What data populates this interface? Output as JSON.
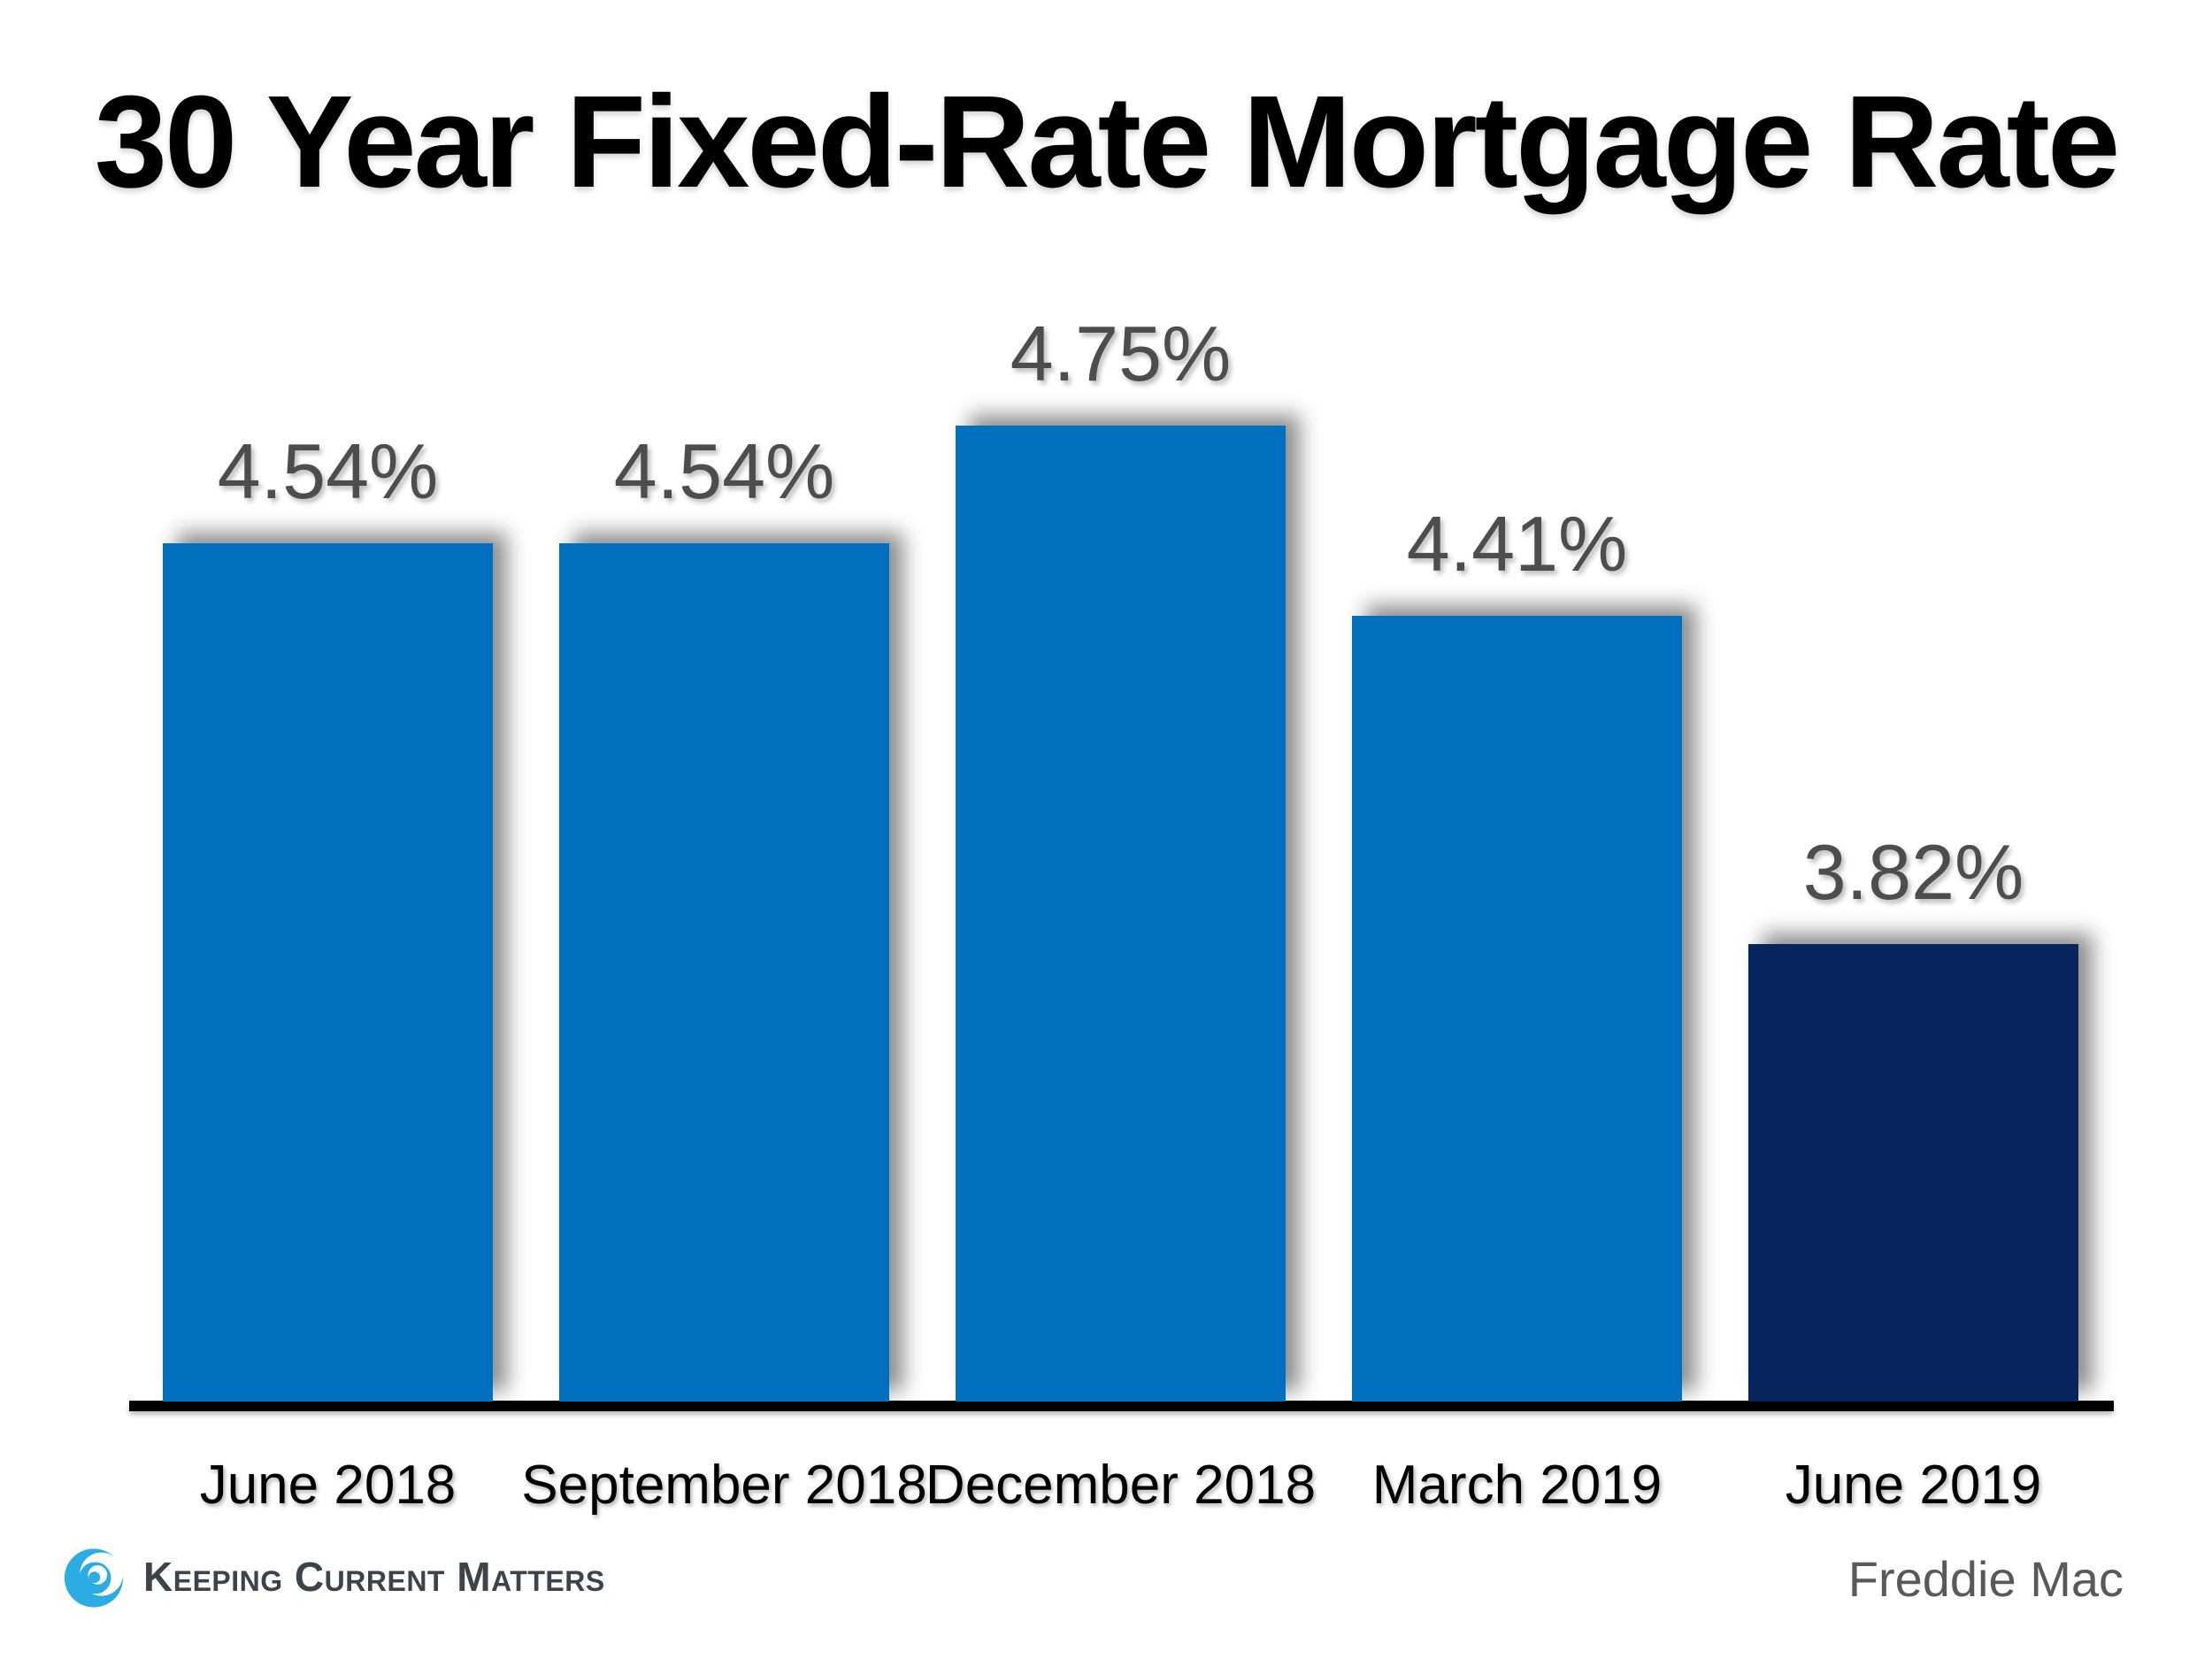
{
  "title": "30 Year Fixed-Rate Mortgage Rate",
  "footer": {
    "logo_text": "Keeping Current Matters",
    "source": "Freddie Mac"
  },
  "colors": {
    "bar_blue": "#0171BF",
    "bar_navy": "#08245C",
    "value_label": "#4D4D4D",
    "category_label": "#000000",
    "axis": "#000000",
    "logo_blue": "#2BACE2",
    "logo_text": "#3B434B",
    "source_text": "#595959"
  },
  "chart_data": {
    "type": "bar",
    "title": "30 Year Fixed-Rate Mortgage Rate",
    "categories": [
      "June 2018",
      "September 2018",
      "December 2018",
      "March 2019",
      "June 2019"
    ],
    "values": [
      4.54,
      4.54,
      4.75,
      4.41,
      3.82
    ],
    "value_labels": [
      "4.54%",
      "4.54%",
      "4.75%",
      "4.41%",
      "3.82%"
    ],
    "bar_colors": [
      "#0171BF",
      "#0171BF",
      "#0171BF",
      "#0171BF",
      "#08245C"
    ],
    "unit": "%",
    "ylim": [
      3.0,
      5.0
    ],
    "xlabel": "",
    "ylabel": "",
    "grid": false,
    "legend": false,
    "source": "Freddie Mac"
  }
}
